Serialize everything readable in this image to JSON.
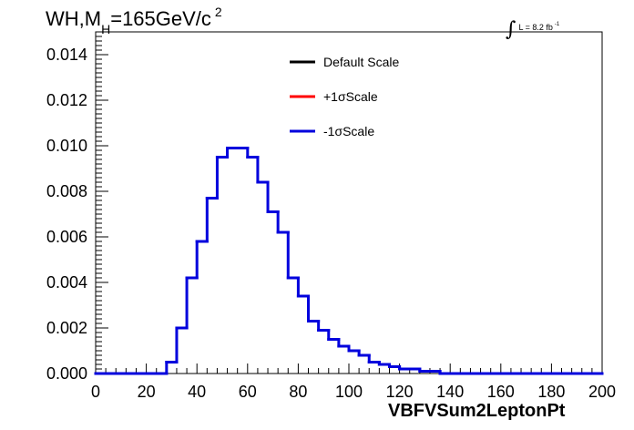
{
  "header": {
    "title_main": "WH,M",
    "title_sub": "H",
    "title_rest": "=165GeV/c",
    "title_sup": "2",
    "lumi_text": "L = 8.2 fb",
    "lumi_sup": "-1"
  },
  "chart_data": {
    "type": "histogram",
    "xlabel": "VBFVSum2LeptonPt",
    "ylabel": "",
    "xlim": [
      0,
      200
    ],
    "ylim": [
      0,
      0.015
    ],
    "x_ticks": [
      "0",
      "20",
      "40",
      "60",
      "80",
      "100",
      "120",
      "140",
      "160",
      "180",
      "200"
    ],
    "y_ticks": [
      "0.000",
      "0.002",
      "0.004",
      "0.006",
      "0.008",
      "0.010",
      "0.012",
      "0.014"
    ],
    "bin_width": 4,
    "bin_edges_start": 0,
    "legend": {
      "placement": "top-center",
      "entries": [
        {
          "label": "Default Scale",
          "color": "#000000"
        },
        {
          "label": "+1σScale",
          "color": "#ff0000"
        },
        {
          "label": "-1σScale",
          "color": "#0000dd"
        }
      ]
    },
    "series": [
      {
        "name": "-1σScale",
        "color": "#0000dd",
        "values": [
          0,
          0,
          0,
          0,
          0,
          0,
          0,
          0.0005,
          0.002,
          0.0042,
          0.0058,
          0.0077,
          0.0095,
          0.0099,
          0.0099,
          0.0095,
          0.0084,
          0.0071,
          0.0062,
          0.0042,
          0.0034,
          0.0023,
          0.0019,
          0.0015,
          0.0012,
          0.001,
          0.0008,
          0.0005,
          0.0004,
          0.0003,
          0.0002,
          0.0002,
          0.0001,
          0.0001,
          0,
          0,
          0,
          0,
          0,
          0,
          0,
          0,
          0,
          0,
          0,
          0,
          0,
          0,
          0,
          0
        ]
      }
    ]
  }
}
